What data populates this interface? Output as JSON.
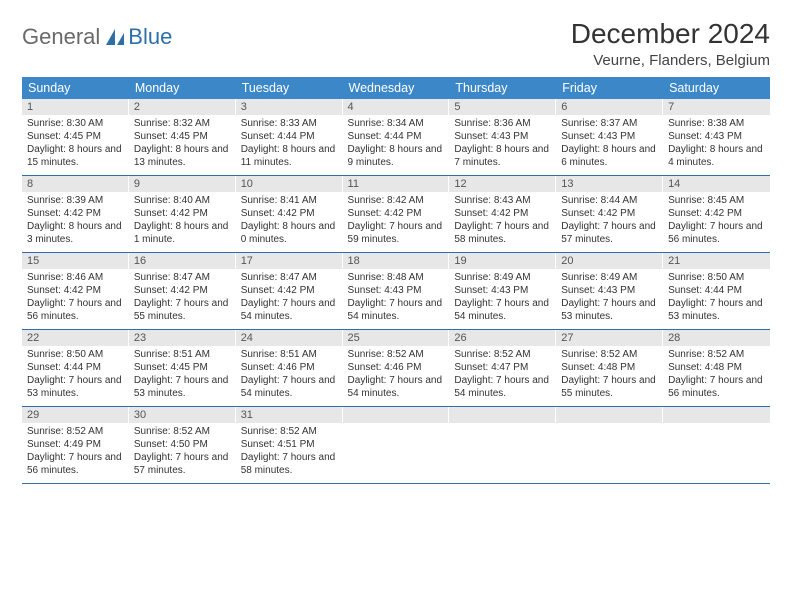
{
  "logo": {
    "text1": "General",
    "text2": "Blue"
  },
  "title": "December 2024",
  "location": "Veurne, Flanders, Belgium",
  "colors": {
    "header_bg": "#3c87c7",
    "daynum_bg": "#e7e7e7",
    "rule": "#2f6fa8",
    "logo_gray": "#6a6a6a",
    "logo_blue": "#2f6fa8"
  },
  "weekdays": [
    "Sunday",
    "Monday",
    "Tuesday",
    "Wednesday",
    "Thursday",
    "Friday",
    "Saturday"
  ],
  "weeks": [
    [
      {
        "n": "1",
        "sr": "8:30 AM",
        "ss": "4:45 PM",
        "dl": "8 hours and 15 minutes."
      },
      {
        "n": "2",
        "sr": "8:32 AM",
        "ss": "4:45 PM",
        "dl": "8 hours and 13 minutes."
      },
      {
        "n": "3",
        "sr": "8:33 AM",
        "ss": "4:44 PM",
        "dl": "8 hours and 11 minutes."
      },
      {
        "n": "4",
        "sr": "8:34 AM",
        "ss": "4:44 PM",
        "dl": "8 hours and 9 minutes."
      },
      {
        "n": "5",
        "sr": "8:36 AM",
        "ss": "4:43 PM",
        "dl": "8 hours and 7 minutes."
      },
      {
        "n": "6",
        "sr": "8:37 AM",
        "ss": "4:43 PM",
        "dl": "8 hours and 6 minutes."
      },
      {
        "n": "7",
        "sr": "8:38 AM",
        "ss": "4:43 PM",
        "dl": "8 hours and 4 minutes."
      }
    ],
    [
      {
        "n": "8",
        "sr": "8:39 AM",
        "ss": "4:42 PM",
        "dl": "8 hours and 3 minutes."
      },
      {
        "n": "9",
        "sr": "8:40 AM",
        "ss": "4:42 PM",
        "dl": "8 hours and 1 minute."
      },
      {
        "n": "10",
        "sr": "8:41 AM",
        "ss": "4:42 PM",
        "dl": "8 hours and 0 minutes."
      },
      {
        "n": "11",
        "sr": "8:42 AM",
        "ss": "4:42 PM",
        "dl": "7 hours and 59 minutes."
      },
      {
        "n": "12",
        "sr": "8:43 AM",
        "ss": "4:42 PM",
        "dl": "7 hours and 58 minutes."
      },
      {
        "n": "13",
        "sr": "8:44 AM",
        "ss": "4:42 PM",
        "dl": "7 hours and 57 minutes."
      },
      {
        "n": "14",
        "sr": "8:45 AM",
        "ss": "4:42 PM",
        "dl": "7 hours and 56 minutes."
      }
    ],
    [
      {
        "n": "15",
        "sr": "8:46 AM",
        "ss": "4:42 PM",
        "dl": "7 hours and 56 minutes."
      },
      {
        "n": "16",
        "sr": "8:47 AM",
        "ss": "4:42 PM",
        "dl": "7 hours and 55 minutes."
      },
      {
        "n": "17",
        "sr": "8:47 AM",
        "ss": "4:42 PM",
        "dl": "7 hours and 54 minutes."
      },
      {
        "n": "18",
        "sr": "8:48 AM",
        "ss": "4:43 PM",
        "dl": "7 hours and 54 minutes."
      },
      {
        "n": "19",
        "sr": "8:49 AM",
        "ss": "4:43 PM",
        "dl": "7 hours and 54 minutes."
      },
      {
        "n": "20",
        "sr": "8:49 AM",
        "ss": "4:43 PM",
        "dl": "7 hours and 53 minutes."
      },
      {
        "n": "21",
        "sr": "8:50 AM",
        "ss": "4:44 PM",
        "dl": "7 hours and 53 minutes."
      }
    ],
    [
      {
        "n": "22",
        "sr": "8:50 AM",
        "ss": "4:44 PM",
        "dl": "7 hours and 53 minutes."
      },
      {
        "n": "23",
        "sr": "8:51 AM",
        "ss": "4:45 PM",
        "dl": "7 hours and 53 minutes."
      },
      {
        "n": "24",
        "sr": "8:51 AM",
        "ss": "4:46 PM",
        "dl": "7 hours and 54 minutes."
      },
      {
        "n": "25",
        "sr": "8:52 AM",
        "ss": "4:46 PM",
        "dl": "7 hours and 54 minutes."
      },
      {
        "n": "26",
        "sr": "8:52 AM",
        "ss": "4:47 PM",
        "dl": "7 hours and 54 minutes."
      },
      {
        "n": "27",
        "sr": "8:52 AM",
        "ss": "4:48 PM",
        "dl": "7 hours and 55 minutes."
      },
      {
        "n": "28",
        "sr": "8:52 AM",
        "ss": "4:48 PM",
        "dl": "7 hours and 56 minutes."
      }
    ],
    [
      {
        "n": "29",
        "sr": "8:52 AM",
        "ss": "4:49 PM",
        "dl": "7 hours and 56 minutes."
      },
      {
        "n": "30",
        "sr": "8:52 AM",
        "ss": "4:50 PM",
        "dl": "7 hours and 57 minutes."
      },
      {
        "n": "31",
        "sr": "8:52 AM",
        "ss": "4:51 PM",
        "dl": "7 hours and 58 minutes."
      },
      null,
      null,
      null,
      null
    ]
  ],
  "labels": {
    "sunrise": "Sunrise:",
    "sunset": "Sunset:",
    "daylight": "Daylight:"
  }
}
